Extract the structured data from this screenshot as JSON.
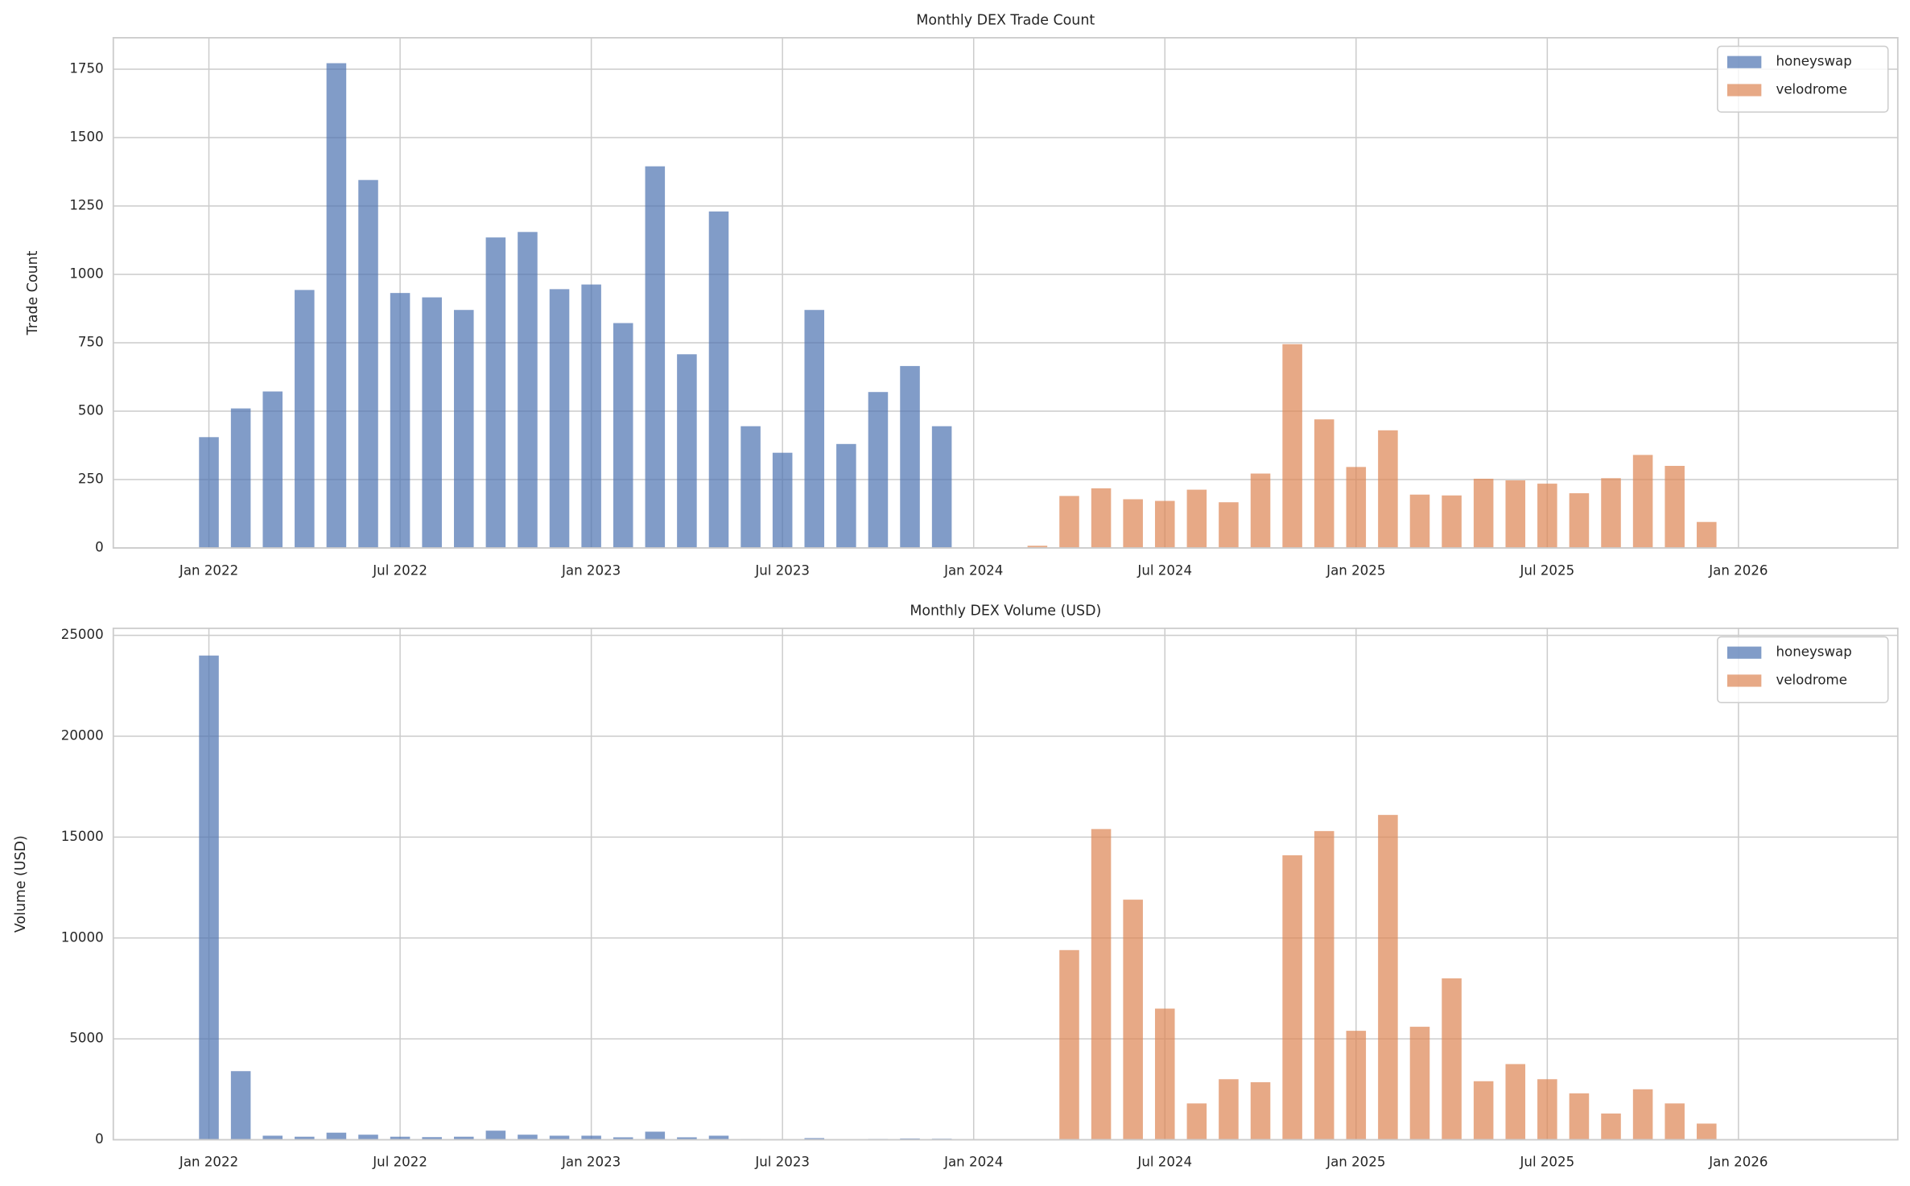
{
  "chart_data": [
    {
      "type": "bar",
      "title": "Monthly DEX Trade Count",
      "ylabel": "Trade Count",
      "x": [
        "2022-01",
        "2022-02",
        "2022-03",
        "2022-04",
        "2022-05",
        "2022-06",
        "2022-07",
        "2022-08",
        "2022-09",
        "2022-10",
        "2022-11",
        "2022-12",
        "2023-01",
        "2023-02",
        "2023-03",
        "2023-04",
        "2023-05",
        "2023-06",
        "2023-07",
        "2023-08",
        "2023-09",
        "2023-10",
        "2023-11",
        "2023-12",
        "2024-01",
        "2024-02",
        "2024-03",
        "2024-04",
        "2024-05",
        "2024-06",
        "2024-07",
        "2024-08",
        "2024-09",
        "2024-10",
        "2024-11",
        "2024-12",
        "2025-01",
        "2025-02",
        "2025-03",
        "2025-04",
        "2025-05",
        "2025-06",
        "2025-07",
        "2025-08",
        "2025-09",
        "2025-10",
        "2025-11",
        "2025-12"
      ],
      "series": [
        {
          "name": "honeyswap",
          "color": "#4c72b0",
          "values": [
            405,
            510,
            572,
            943,
            1772,
            1345,
            932,
            916,
            870,
            1135,
            1155,
            946,
            963,
            822,
            1395,
            708,
            1230,
            445,
            348,
            870,
            380,
            570,
            665,
            445,
            null,
            null,
            null,
            null,
            null,
            null,
            null,
            null,
            null,
            null,
            null,
            null,
            null,
            null,
            null,
            null,
            null,
            null,
            null,
            null,
            null,
            null,
            null,
            null
          ]
        },
        {
          "name": "velodrome",
          "color": "#dd8452",
          "values": [
            null,
            null,
            null,
            null,
            null,
            null,
            null,
            null,
            null,
            null,
            null,
            null,
            null,
            null,
            null,
            null,
            null,
            null,
            null,
            null,
            null,
            null,
            null,
            null,
            null,
            null,
            8,
            190,
            218,
            178,
            172,
            213,
            167,
            272,
            745,
            470,
            296,
            430,
            195,
            192,
            253,
            247,
            235,
            200,
            255,
            340,
            300,
            95
          ]
        }
      ],
      "xlim": [
        "2021-10",
        "2026-06"
      ],
      "xticks": [
        {
          "value": "2022-01",
          "label": "Jan 2022"
        },
        {
          "value": "2022-07",
          "label": "Jul 2022"
        },
        {
          "value": "2023-01",
          "label": "Jan 2023"
        },
        {
          "value": "2023-07",
          "label": "Jul 2023"
        },
        {
          "value": "2024-01",
          "label": "Jan 2024"
        },
        {
          "value": "2024-07",
          "label": "Jul 2024"
        },
        {
          "value": "2025-01",
          "label": "Jan 2025"
        },
        {
          "value": "2025-07",
          "label": "Jul 2025"
        },
        {
          "value": "2026-01",
          "label": "Jan 2026"
        }
      ],
      "ylim": [
        0,
        1865
      ],
      "yticks": [
        0,
        250,
        500,
        750,
        1000,
        1250,
        1500,
        1750
      ],
      "grid": true,
      "legend": "upper right"
    },
    {
      "type": "bar",
      "title": "Monthly DEX Volume (USD)",
      "ylabel": "Volume (USD)",
      "x": [
        "2022-01",
        "2022-02",
        "2022-03",
        "2022-04",
        "2022-05",
        "2022-06",
        "2022-07",
        "2022-08",
        "2022-09",
        "2022-10",
        "2022-11",
        "2022-12",
        "2023-01",
        "2023-02",
        "2023-03",
        "2023-04",
        "2023-05",
        "2023-06",
        "2023-07",
        "2023-08",
        "2023-09",
        "2023-10",
        "2023-11",
        "2023-12",
        "2024-01",
        "2024-02",
        "2024-03",
        "2024-04",
        "2024-05",
        "2024-06",
        "2024-07",
        "2024-08",
        "2024-09",
        "2024-10",
        "2024-11",
        "2024-12",
        "2025-01",
        "2025-02",
        "2025-03",
        "2025-04",
        "2025-05",
        "2025-06",
        "2025-07",
        "2025-08",
        "2025-09",
        "2025-10",
        "2025-11",
        "2025-12"
      ],
      "series": [
        {
          "name": "honeyswap",
          "color": "#4c72b0",
          "values": [
            24000,
            3400,
            200,
            150,
            350,
            250,
            150,
            130,
            150,
            450,
            250,
            200,
            200,
            120,
            400,
            120,
            200,
            30,
            20,
            80,
            20,
            40,
            60,
            50,
            null,
            null,
            null,
            null,
            null,
            null,
            null,
            null,
            null,
            null,
            null,
            null,
            null,
            null,
            null,
            null,
            null,
            null,
            null,
            null,
            null,
            null,
            null,
            null
          ]
        },
        {
          "name": "velodrome",
          "color": "#dd8452",
          "values": [
            null,
            null,
            null,
            null,
            null,
            null,
            null,
            null,
            null,
            null,
            null,
            null,
            null,
            null,
            null,
            null,
            null,
            null,
            null,
            null,
            null,
            null,
            null,
            null,
            null,
            null,
            10,
            9400,
            15400,
            11900,
            6500,
            1800,
            3000,
            2850,
            14100,
            15300,
            5400,
            16100,
            5600,
            8000,
            2900,
            3750,
            3000,
            2300,
            1300,
            2500,
            1800,
            800
          ]
        }
      ],
      "xlim": [
        "2021-10",
        "2026-06"
      ],
      "xticks": [
        {
          "value": "2022-01",
          "label": "Jan 2022"
        },
        {
          "value": "2022-07",
          "label": "Jul 2022"
        },
        {
          "value": "2023-01",
          "label": "Jan 2023"
        },
        {
          "value": "2023-07",
          "label": "Jul 2023"
        },
        {
          "value": "2024-01",
          "label": "Jan 2024"
        },
        {
          "value": "2024-07",
          "label": "Jul 2024"
        },
        {
          "value": "2025-01",
          "label": "Jan 2025"
        },
        {
          "value": "2025-07",
          "label": "Jul 2025"
        },
        {
          "value": "2026-01",
          "label": "Jan 2026"
        }
      ],
      "ylim": [
        0,
        25350
      ],
      "yticks": [
        0,
        5000,
        10000,
        15000,
        20000,
        25000
      ],
      "grid": true,
      "legend": "upper right"
    }
  ]
}
